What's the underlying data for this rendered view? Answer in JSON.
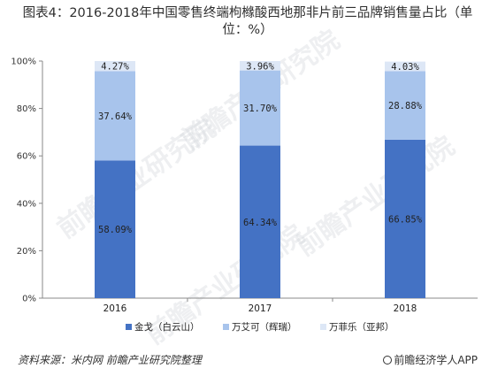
{
  "chart_data": {
    "type": "bar",
    "stacked": true,
    "title": "图表4：2016-2018年中国零售终端枸橼酸西地那非片前三品牌销售量占比（单位：%）",
    "categories": [
      "2016",
      "2017",
      "2018"
    ],
    "series": [
      {
        "name": "金戈（白云山）",
        "color": "#4472c4",
        "values": [
          58.09,
          64.34,
          66.85
        ],
        "labels": [
          "58.09%",
          "64.34%",
          "66.85%"
        ]
      },
      {
        "name": "万艾可（辉瑞）",
        "color": "#a8c4ec",
        "values": [
          37.64,
          31.7,
          28.88
        ],
        "labels": [
          "37.64%",
          "31.70%",
          "28.88%"
        ]
      },
      {
        "name": "万菲乐（亚邦）",
        "color": "#dde7f6",
        "values": [
          4.27,
          3.96,
          4.03
        ],
        "labels": [
          "4.27%",
          "3.96%",
          "4.03%"
        ]
      }
    ],
    "y_ticks": [
      "0%",
      "20%",
      "40%",
      "60%",
      "80%",
      "100%"
    ],
    "ylim": [
      0,
      100
    ],
    "grid": false,
    "legend_position": "bottom"
  },
  "source": "资料来源：米内网 前瞻产业研究院整理",
  "brand": "前瞻经济学人APP",
  "watermark": "前瞻产业研究院"
}
